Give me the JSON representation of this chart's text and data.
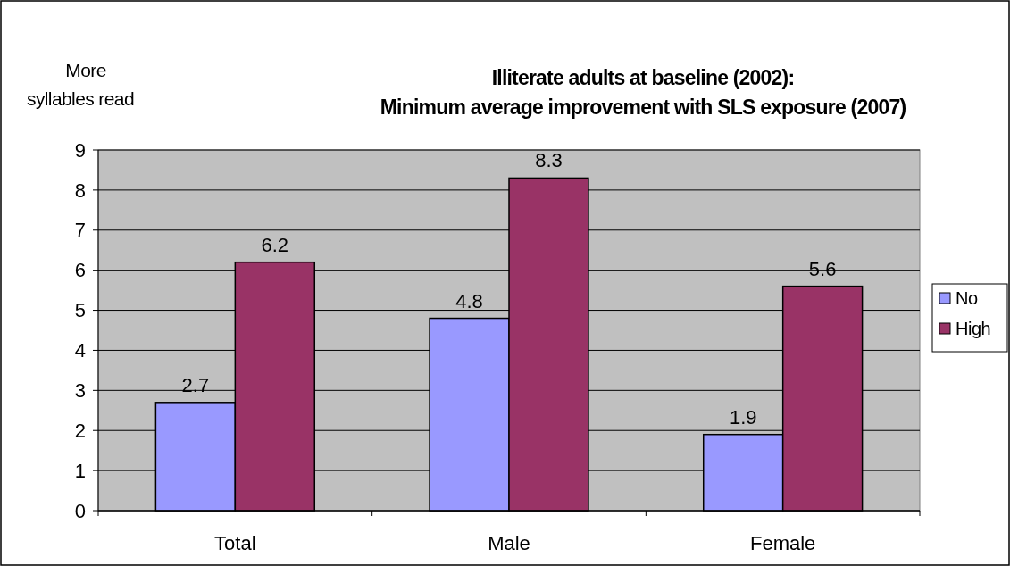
{
  "chart_data": {
    "type": "bar",
    "title": "Illiterate adults at baseline (2002):\nMinimum average improvement with SLS exposure (2007)",
    "ylabel": "More syllables read",
    "categories": [
      "Total",
      "Male",
      "Female"
    ],
    "series": [
      {
        "name": "No",
        "color": "#9999ff",
        "values": [
          2.7,
          4.8,
          1.9
        ]
      },
      {
        "name": "High",
        "color": "#993366",
        "values": [
          6.2,
          8.3,
          5.6
        ]
      }
    ],
    "ylim": [
      0,
      9
    ],
    "yticks": [
      0,
      1,
      2,
      3,
      4,
      5,
      6,
      7,
      8,
      9
    ],
    "grid": "y",
    "legend": "right",
    "data_labels": true
  }
}
